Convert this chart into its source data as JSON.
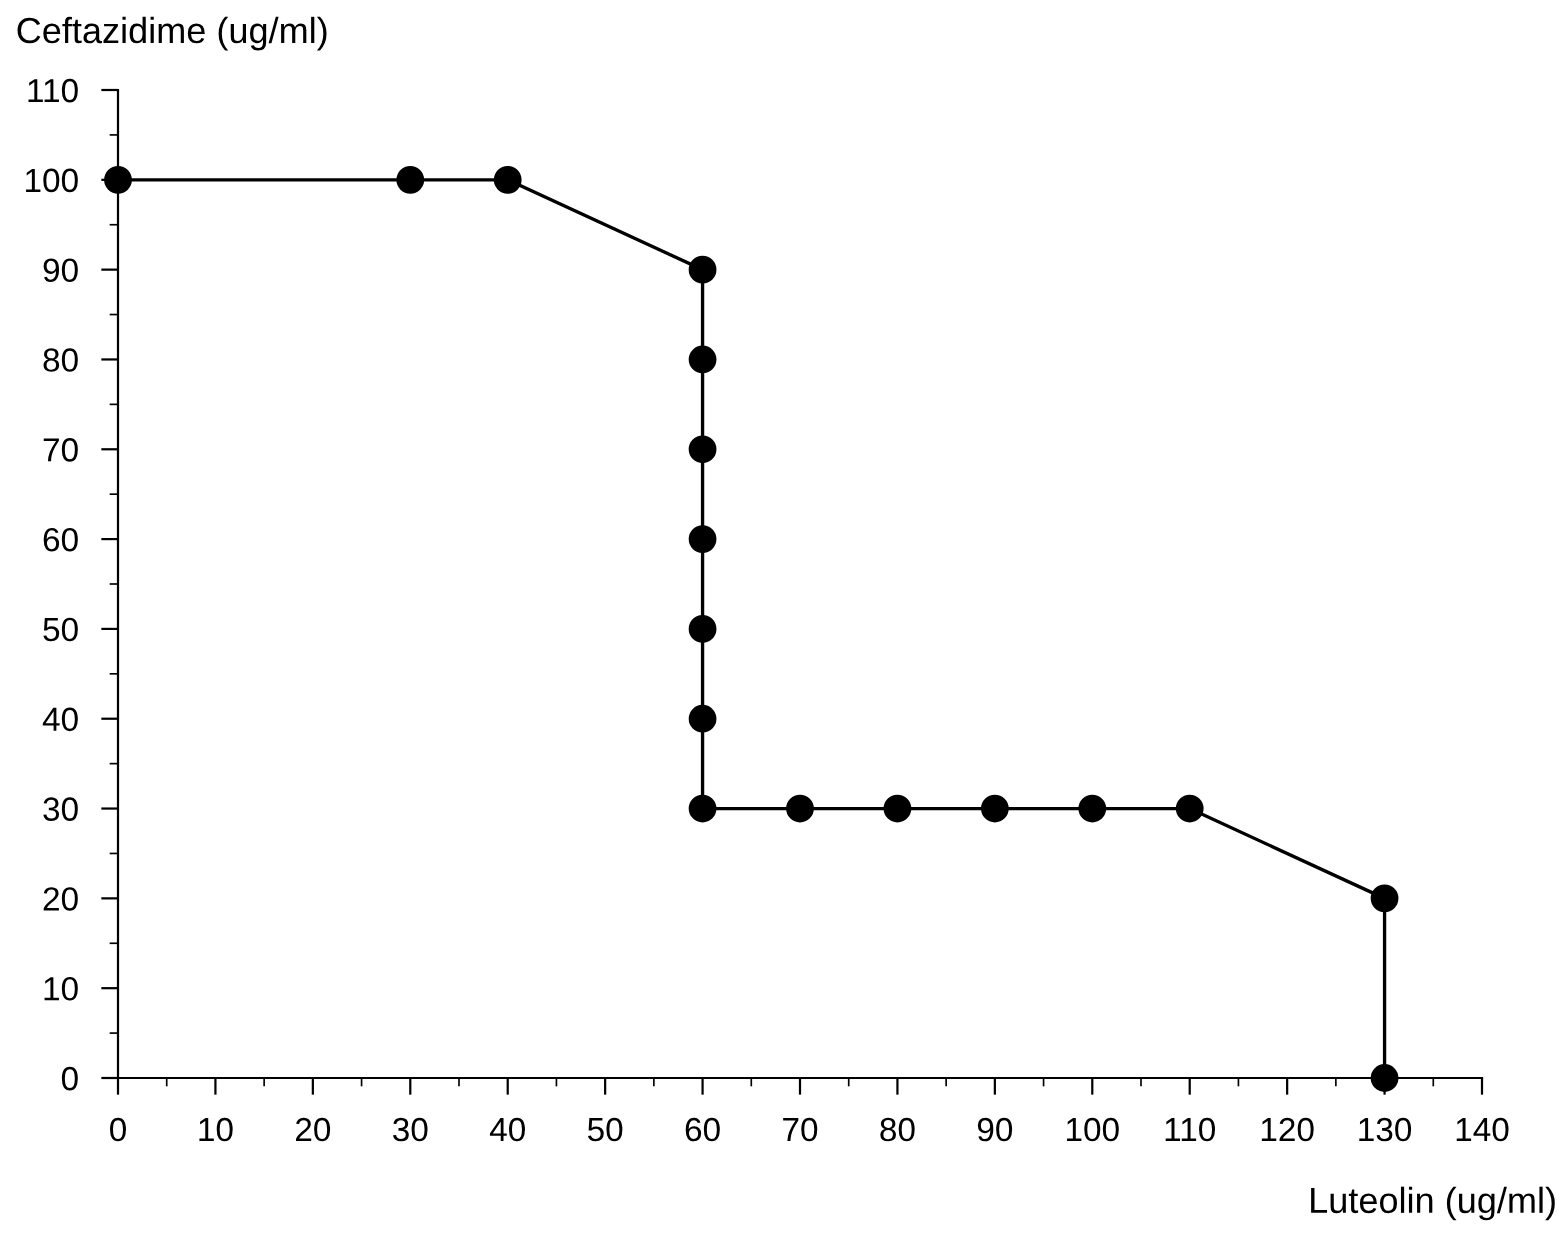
{
  "chart_data": {
    "type": "line",
    "xlabel": "Luteolin (ug/ml)",
    "ylabel": "Ceftazidime (ug/ml)",
    "x": [
      0,
      30,
      40,
      60,
      60,
      60,
      60,
      60,
      60,
      60,
      70,
      80,
      90,
      100,
      110,
      130,
      130
    ],
    "series": [
      {
        "color": "#000000",
        "values": [
          100,
          100,
          100,
          90,
          80,
          70,
          60,
          50,
          40,
          30,
          30,
          30,
          30,
          30,
          30,
          20,
          0
        ]
      }
    ],
    "xlim": [
      0,
      140
    ],
    "xticks": [
      0,
      10,
      20,
      30,
      40,
      50,
      60,
      70,
      80,
      90,
      100,
      110,
      120,
      130,
      140
    ],
    "ylim": [
      0,
      110
    ],
    "yticks": [
      0,
      10,
      20,
      30,
      40,
      50,
      60,
      70,
      80,
      90,
      100,
      110
    ],
    "grid": false,
    "legend": false,
    "marker": "circle",
    "line_style": "solid"
  }
}
